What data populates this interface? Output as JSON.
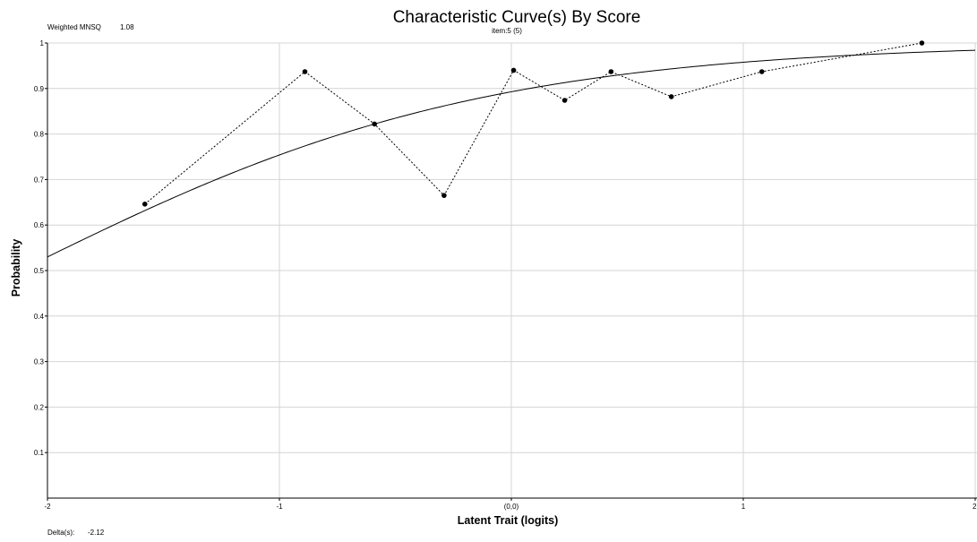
{
  "header": {
    "fit_label": "Weighted MNSQ",
    "fit_value": "1.08"
  },
  "footer": {
    "delta_label": "Delta(s):",
    "delta_value": "-2.12"
  },
  "chart_data": {
    "type": "line",
    "title": "Characteristic Curve(s) By Score",
    "subtitle": "item:5 (5)",
    "xlabel": "Latent Trait (logits)",
    "ylabel": "Probability",
    "xlim": [
      -2,
      2
    ],
    "ylim": [
      0,
      1
    ],
    "x_ticks": [
      {
        "value": -2,
        "label": "-2"
      },
      {
        "value": -1,
        "label": "-1"
      },
      {
        "value": 0,
        "label": "(0,0)"
      },
      {
        "value": 1,
        "label": "1"
      },
      {
        "value": 2,
        "label": "2"
      }
    ],
    "y_ticks": [
      {
        "value": 0.1,
        "label": "0.1"
      },
      {
        "value": 0.2,
        "label": "0.2"
      },
      {
        "value": 0.3,
        "label": "0.3"
      },
      {
        "value": 0.4,
        "label": "0.4"
      },
      {
        "value": 0.5,
        "label": "0.5"
      },
      {
        "value": 0.6,
        "label": "0.6"
      },
      {
        "value": 0.7,
        "label": "0.7"
      },
      {
        "value": 0.8,
        "label": "0.8"
      },
      {
        "value": 0.9,
        "label": "0.9"
      },
      {
        "value": 1,
        "label": "1"
      }
    ],
    "grid": true,
    "model_curve": {
      "style": "solid",
      "delta": -2.12
    },
    "observed": {
      "style": "dotted",
      "points": [
        {
          "x": -1.58,
          "y": 0.646
        },
        {
          "x": -0.89,
          "y": 0.937
        },
        {
          "x": -0.59,
          "y": 0.822
        },
        {
          "x": -0.29,
          "y": 0.665
        },
        {
          "x": 0.01,
          "y": 0.94
        },
        {
          "x": 0.23,
          "y": 0.874
        },
        {
          "x": 0.43,
          "y": 0.937
        },
        {
          "x": 0.69,
          "y": 0.882
        },
        {
          "x": 1.08,
          "y": 0.937
        },
        {
          "x": 1.77,
          "y": 1.0
        }
      ]
    }
  }
}
